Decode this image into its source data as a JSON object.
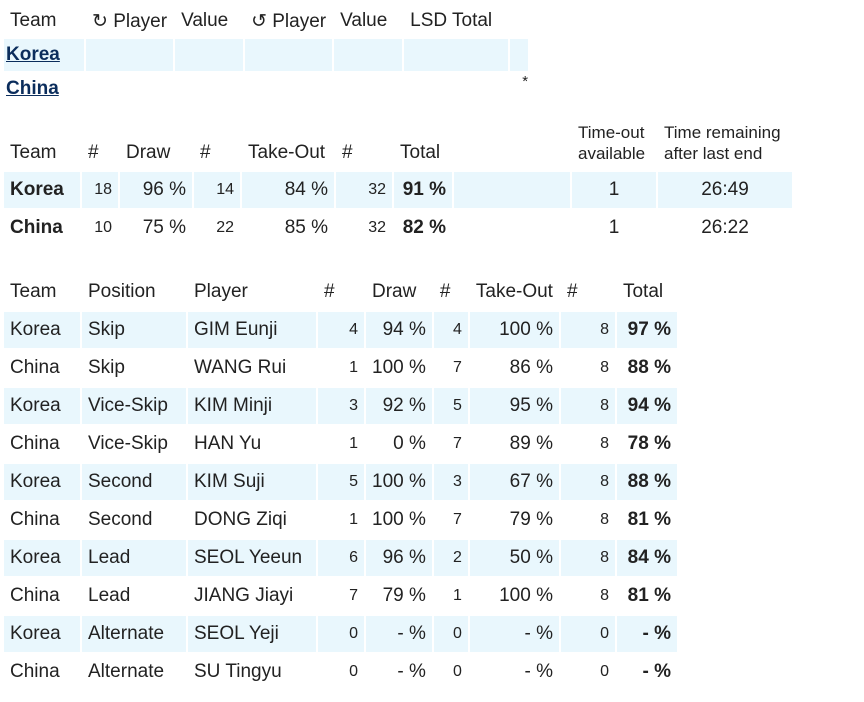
{
  "lsd": {
    "headers": {
      "team": "Team",
      "player1": "↻ Player",
      "value1": "Value",
      "player2": "↺ Player",
      "value2": "Value",
      "total": "LSD Total"
    },
    "rows": [
      {
        "team": "Korea",
        "marker": ""
      },
      {
        "team": "China",
        "marker": "*"
      }
    ]
  },
  "teams": {
    "headers": {
      "team": "Team",
      "n1": "#",
      "draw": "Draw",
      "n2": "#",
      "takeout": "Take-Out",
      "n3": "#",
      "total": "Total",
      "timeout_1": "Time-out",
      "timeout_2": "available",
      "remaining_1": "Time remaining",
      "remaining_2": "after last end"
    },
    "rows": [
      {
        "team": "Korea",
        "n1": "18",
        "draw": "96 %",
        "n2": "14",
        "takeout": "84 %",
        "n3": "32",
        "total": "91 %",
        "timeout": "1",
        "time": "26:49"
      },
      {
        "team": "China",
        "n1": "10",
        "draw": "75 %",
        "n2": "22",
        "takeout": "85 %",
        "n3": "32",
        "total": "82 %",
        "timeout": "1",
        "time": "26:22"
      }
    ]
  },
  "players": {
    "headers": {
      "team": "Team",
      "position": "Position",
      "player": "Player",
      "n1": "#",
      "draw": "Draw",
      "n2": "#",
      "takeout": "Take-Out",
      "n3": "#",
      "total": "Total"
    },
    "rows": [
      {
        "team": "Korea",
        "position": "Skip",
        "player": "GIM Eunji",
        "n1": "4",
        "draw": "94 %",
        "n2": "4",
        "takeout": "100 %",
        "n3": "8",
        "total": "97 %"
      },
      {
        "team": "China",
        "position": "Skip",
        "player": "WANG Rui",
        "n1": "1",
        "draw": "100 %",
        "n2": "7",
        "takeout": "86 %",
        "n3": "8",
        "total": "88 %"
      },
      {
        "team": "Korea",
        "position": "Vice-Skip",
        "player": "KIM Minji",
        "n1": "3",
        "draw": "92 %",
        "n2": "5",
        "takeout": "95 %",
        "n3": "8",
        "total": "94 %"
      },
      {
        "team": "China",
        "position": "Vice-Skip",
        "player": "HAN Yu",
        "n1": "1",
        "draw": "0 %",
        "n2": "7",
        "takeout": "89 %",
        "n3": "8",
        "total": "78 %"
      },
      {
        "team": "Korea",
        "position": "Second",
        "player": "KIM Suji",
        "n1": "5",
        "draw": "100 %",
        "n2": "3",
        "takeout": "67 %",
        "n3": "8",
        "total": "88 %"
      },
      {
        "team": "China",
        "position": "Second",
        "player": "DONG Ziqi",
        "n1": "1",
        "draw": "100 %",
        "n2": "7",
        "takeout": "79 %",
        "n3": "8",
        "total": "81 %"
      },
      {
        "team": "Korea",
        "position": "Lead",
        "player": "SEOL Yeeun",
        "n1": "6",
        "draw": "96 %",
        "n2": "2",
        "takeout": "50 %",
        "n3": "8",
        "total": "84 %"
      },
      {
        "team": "China",
        "position": "Lead",
        "player": "JIANG Jiayi",
        "n1": "7",
        "draw": "79 %",
        "n2": "1",
        "takeout": "100 %",
        "n3": "8",
        "total": "81 %"
      },
      {
        "team": "Korea",
        "position": "Alternate",
        "player": "SEOL Yeji",
        "n1": "0",
        "draw": "- %",
        "n2": "0",
        "takeout": "- %",
        "n3": "0",
        "total": "- %"
      },
      {
        "team": "China",
        "position": "Alternate",
        "player": "SU Tingyu",
        "n1": "0",
        "draw": "- %",
        "n2": "0",
        "takeout": "- %",
        "n3": "0",
        "total": "- %"
      }
    ]
  }
}
